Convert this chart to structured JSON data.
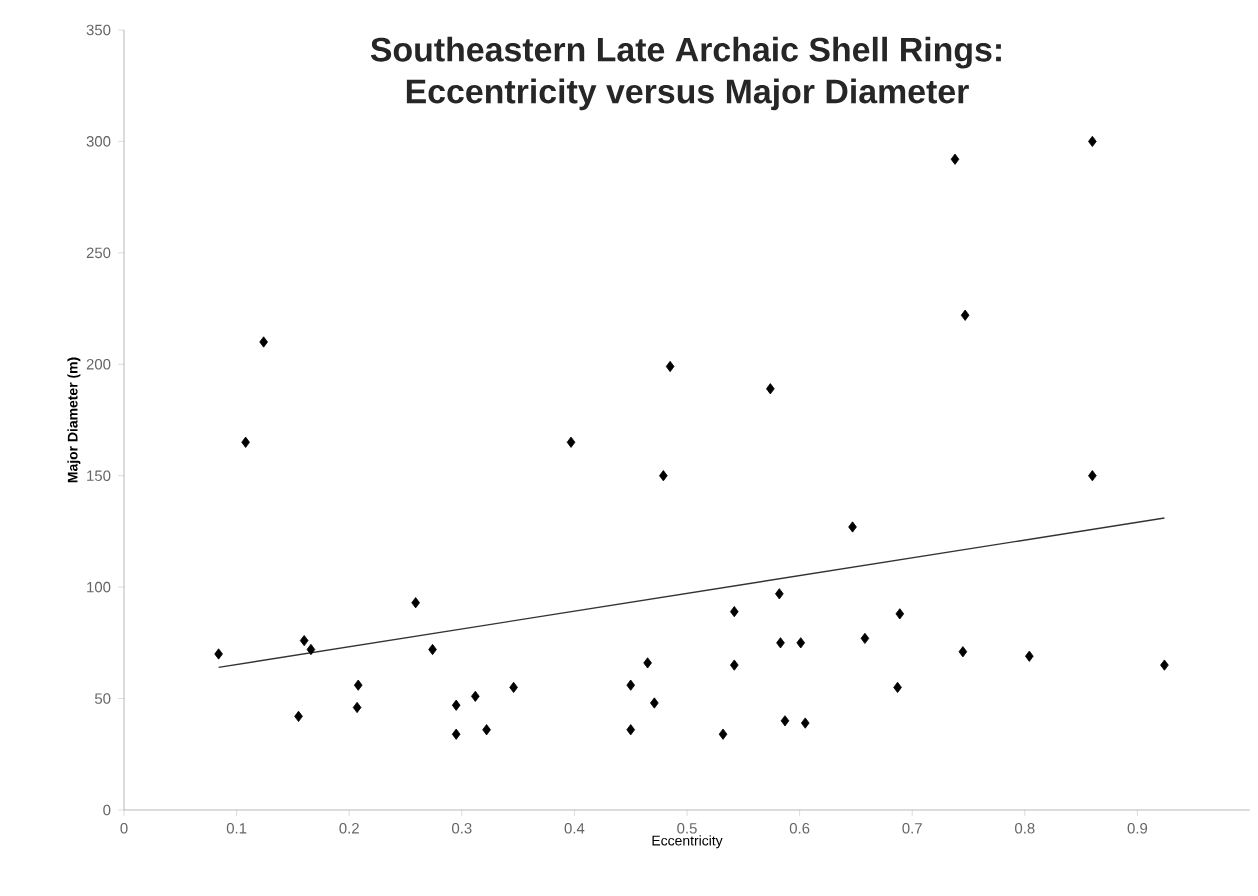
{
  "chart_data": {
    "type": "scatter",
    "title": "Southeastern Late Archaic Shell Rings:\nEccentricity versus Major Diameter",
    "xlabel": "Eccentricity",
    "ylabel": "Major Diameter (m)",
    "xlim": [
      0,
      1
    ],
    "ylim": [
      0,
      350
    ],
    "xticks": [
      0,
      0.1,
      0.2,
      0.3,
      0.4,
      0.5,
      0.6,
      0.7,
      0.8,
      0.9
    ],
    "yticks": [
      0,
      50,
      100,
      150,
      200,
      250,
      300,
      350
    ],
    "grid": false,
    "marker": "diamond",
    "series": [
      {
        "color": "#000000",
        "x": [
          0.084,
          0.108,
          0.124,
          0.155,
          0.16,
          0.166,
          0.208,
          0.207,
          0.259,
          0.274,
          0.295,
          0.295,
          0.312,
          0.322,
          0.346,
          0.397,
          0.45,
          0.45,
          0.465,
          0.471,
          0.479,
          0.485,
          0.738,
          0.86,
          0.747,
          0.574,
          0.86,
          0.647,
          0.582,
          0.542,
          0.689,
          0.583,
          0.601,
          0.658,
          0.745,
          0.804,
          0.924,
          0.542,
          0.687,
          0.532,
          0.587,
          0.605
        ],
        "values": [
          70,
          165,
          210,
          42,
          76,
          72,
          56,
          46,
          93,
          72,
          47,
          34,
          51,
          36,
          55,
          165,
          56,
          36,
          66,
          48,
          150,
          199,
          292,
          300,
          222,
          189,
          150,
          127,
          97,
          89,
          88,
          75,
          75,
          77,
          71,
          69,
          65,
          65,
          55,
          34,
          40,
          39
        ]
      },
      {
        "type": "line",
        "color": "#333333",
        "marker": "none",
        "line_style": "solid",
        "x": [
          0.084,
          0.924
        ],
        "values": [
          64,
          131
        ]
      }
    ]
  }
}
